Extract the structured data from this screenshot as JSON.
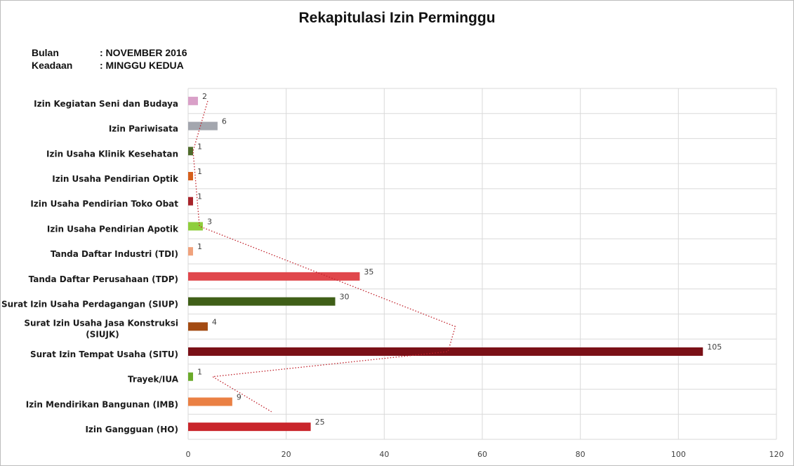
{
  "header": {
    "title": "Rekapitulasi Izin Perminggu",
    "bulan_label": "Bulan",
    "bulan_value": ": NOVEMBER 2016",
    "keadaan_label": "Keadaan",
    "keadaan_value": ": MINGGU KEDUA"
  },
  "chart_data": {
    "type": "bar",
    "orientation": "horizontal",
    "title": "Rekapitulasi Izin Perminggu",
    "xlim": [
      0,
      120
    ],
    "x_ticks": [
      0,
      20,
      40,
      60,
      80,
      100,
      120
    ],
    "grid": true,
    "trendline": "dotted",
    "trendline_color": "#c0202a",
    "categories": [
      "Izin Kegiatan Seni dan Budaya",
      "Izin Pariwisata",
      "Izin Usaha Klinik Kesehatan",
      "Izin Usaha Pendirian Optik",
      "Izin Usaha Pendirian Toko Obat",
      "Izin Usaha Pendirian Apotik",
      "Tanda Daftar Industri (TDI)",
      "Tanda Daftar Perusahaan (TDP)",
      "Surat Izin Usaha Perdagangan (SIUP)",
      "Surat Izin Usaha Jasa Konstruksi (SIUJK)",
      "Surat Izin Tempat Usaha (SITU)",
      "Trayek/IUA",
      "Izin Mendirikan Bangunan (IMB)",
      "Izin Gangguan (HO)"
    ],
    "category_lines": [
      [
        "Izin Kegiatan Seni dan Budaya"
      ],
      [
        "Izin Pariwisata"
      ],
      [
        "Izin Usaha Klinik Kesehatan"
      ],
      [
        "Izin Usaha Pendirian Optik"
      ],
      [
        "Izin Usaha Pendirian Toko Obat"
      ],
      [
        "Izin Usaha Pendirian Apotik"
      ],
      [
        "Tanda Daftar Industri (TDI)"
      ],
      [
        "Tanda Daftar Perusahaan (TDP)"
      ],
      [
        "Surat Izin Usaha Perdagangan (SIUP)"
      ],
      [
        "Surat Izin Usaha Jasa Konstruksi",
        "(SIUJK)"
      ],
      [
        "Surat Izin Tempat Usaha (SITU)"
      ],
      [
        "Trayek/IUA"
      ],
      [
        "Izin Mendirikan Bangunan (IMB)"
      ],
      [
        "Izin Gangguan (HO)"
      ]
    ],
    "values": [
      2,
      6,
      1,
      1,
      1,
      3,
      1,
      35,
      30,
      4,
      105,
      1,
      9,
      25
    ],
    "colors": [
      "#d9a0c8",
      "#a3a6ae",
      "#4e6b2a",
      "#d65f1c",
      "#a8232a",
      "#8fce3c",
      "#f0a27c",
      "#e0474c",
      "#3f5f17",
      "#a34a12",
      "#7a1017",
      "#6aaa2a",
      "#ea8044",
      "#c9252b"
    ],
    "trend_points": [
      [
        4,
        0
      ],
      [
        1,
        2
      ],
      [
        2.3,
        5
      ],
      [
        54.5,
        9
      ],
      [
        53,
        10
      ],
      [
        5,
        11
      ],
      [
        17,
        12.4
      ]
    ]
  }
}
